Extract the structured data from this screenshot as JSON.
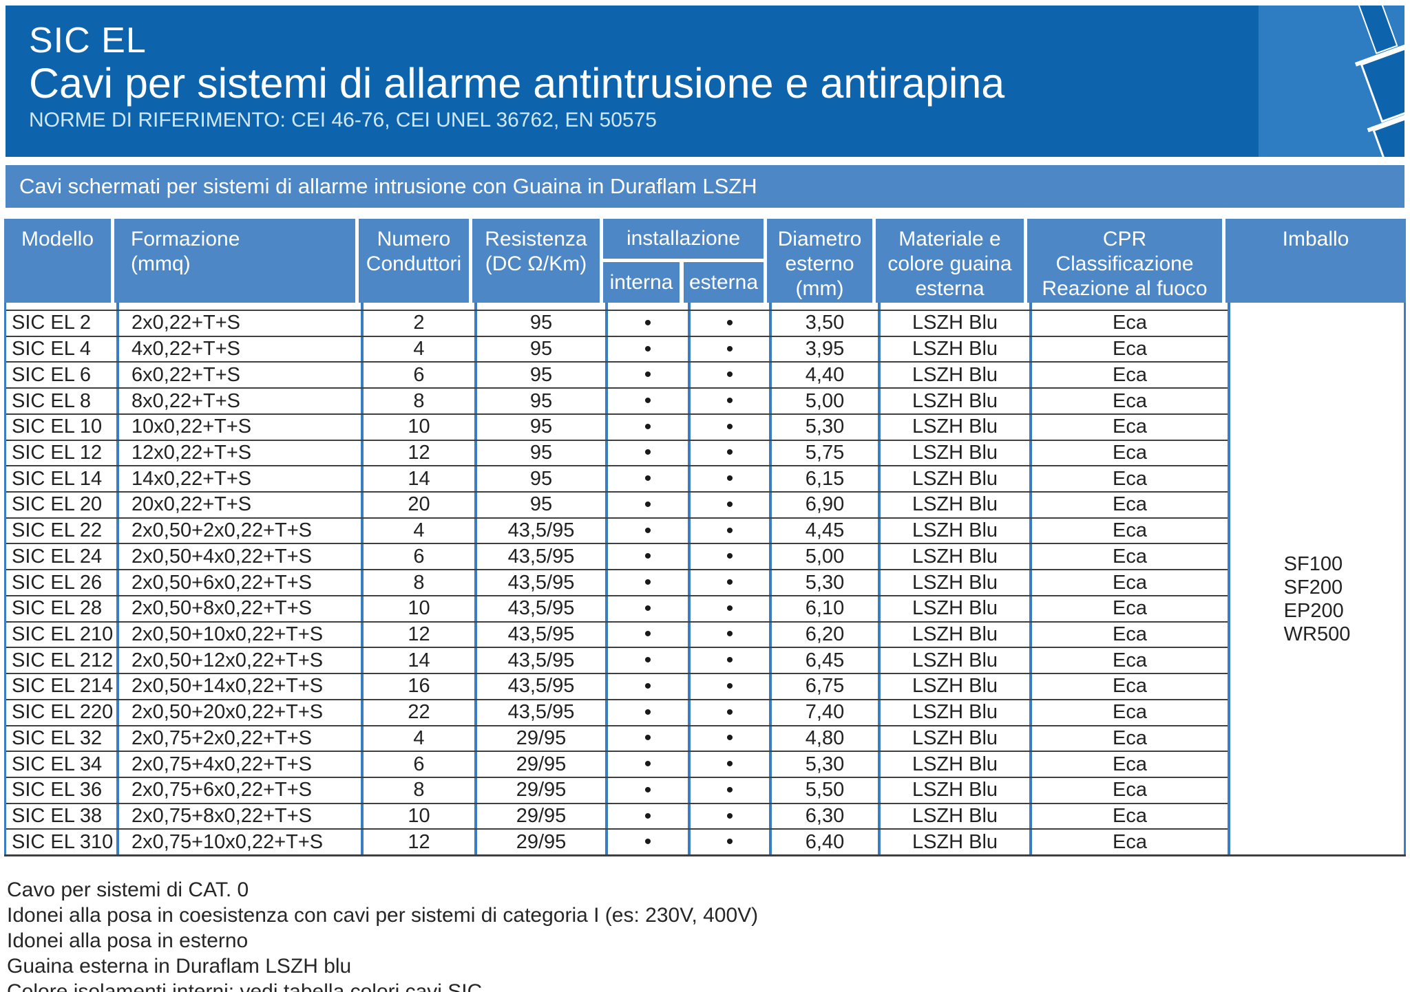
{
  "header": {
    "product": "SIC EL",
    "title": "Cavi per sistemi di allarme antintrusione e antirapina",
    "norms": "NORME DI RIFERIMENTO: CEI 46-76, CEI UNEL 36762, EN 50575"
  },
  "section": {
    "banner": "Cavi schermati per sistemi di allarme intrusione con Guaina in Duraflam LSZH"
  },
  "table": {
    "headers": {
      "modello": "Modello",
      "formazione": "Formazione\n(mmq)",
      "numero": "Numero\nConduttori",
      "resistenza": "Resistenza\n(DC Ω/Km)",
      "installazione": "installazione",
      "interna": "interna",
      "esterna": "esterna",
      "diametro": "Diametro\nesterno\n(mm)",
      "materiale": "Materiale e\ncolore guaina\nesterna",
      "cpr": "CPR\nClassificazione\nReazione al fuoco",
      "imballo": "Imballo"
    },
    "dot": "•",
    "rows": [
      {
        "modello": "SIC EL 2",
        "formazione": "2x0,22+T+S",
        "conduttori": "2",
        "resistenza": "95",
        "interna": true,
        "esterna": true,
        "diametro": "3,50",
        "guaina": "LSZH Blu",
        "cpr": "Eca"
      },
      {
        "modello": "SIC EL 4",
        "formazione": "4x0,22+T+S",
        "conduttori": "4",
        "resistenza": "95",
        "interna": true,
        "esterna": true,
        "diametro": "3,95",
        "guaina": "LSZH Blu",
        "cpr": "Eca"
      },
      {
        "modello": "SIC EL 6",
        "formazione": "6x0,22+T+S",
        "conduttori": "6",
        "resistenza": "95",
        "interna": true,
        "esterna": true,
        "diametro": "4,40",
        "guaina": "LSZH Blu",
        "cpr": "Eca"
      },
      {
        "modello": "SIC EL 8",
        "formazione": "8x0,22+T+S",
        "conduttori": "8",
        "resistenza": "95",
        "interna": true,
        "esterna": true,
        "diametro": "5,00",
        "guaina": "LSZH Blu",
        "cpr": "Eca"
      },
      {
        "modello": "SIC EL 10",
        "formazione": "10x0,22+T+S",
        "conduttori": "10",
        "resistenza": "95",
        "interna": true,
        "esterna": true,
        "diametro": "5,30",
        "guaina": "LSZH Blu",
        "cpr": "Eca"
      },
      {
        "modello": "SIC EL 12",
        "formazione": "12x0,22+T+S",
        "conduttori": "12",
        "resistenza": "95",
        "interna": true,
        "esterna": true,
        "diametro": "5,75",
        "guaina": "LSZH Blu",
        "cpr": "Eca"
      },
      {
        "modello": "SIC EL 14",
        "formazione": "14x0,22+T+S",
        "conduttori": "14",
        "resistenza": "95",
        "interna": true,
        "esterna": true,
        "diametro": "6,15",
        "guaina": "LSZH Blu",
        "cpr": "Eca"
      },
      {
        "modello": "SIC EL 20",
        "formazione": "20x0,22+T+S",
        "conduttori": "20",
        "resistenza": "95",
        "interna": true,
        "esterna": true,
        "diametro": "6,90",
        "guaina": "LSZH Blu",
        "cpr": "Eca"
      },
      {
        "modello": "SIC EL 22",
        "formazione": "2x0,50+2x0,22+T+S",
        "conduttori": "4",
        "resistenza": "43,5/95",
        "interna": true,
        "esterna": true,
        "diametro": "4,45",
        "guaina": "LSZH Blu",
        "cpr": "Eca"
      },
      {
        "modello": "SIC EL 24",
        "formazione": "2x0,50+4x0,22+T+S",
        "conduttori": "6",
        "resistenza": "43,5/95",
        "interna": true,
        "esterna": true,
        "diametro": "5,00",
        "guaina": "LSZH Blu",
        "cpr": "Eca"
      },
      {
        "modello": "SIC EL 26",
        "formazione": "2x0,50+6x0,22+T+S",
        "conduttori": "8",
        "resistenza": "43,5/95",
        "interna": true,
        "esterna": true,
        "diametro": "5,30",
        "guaina": "LSZH Blu",
        "cpr": "Eca"
      },
      {
        "modello": "SIC EL 28",
        "formazione": "2x0,50+8x0,22+T+S",
        "conduttori": "10",
        "resistenza": "43,5/95",
        "interna": true,
        "esterna": true,
        "diametro": "6,10",
        "guaina": "LSZH Blu",
        "cpr": "Eca"
      },
      {
        "modello": "SIC EL 210",
        "formazione": "2x0,50+10x0,22+T+S",
        "conduttori": "12",
        "resistenza": "43,5/95",
        "interna": true,
        "esterna": true,
        "diametro": "6,20",
        "guaina": "LSZH Blu",
        "cpr": "Eca"
      },
      {
        "modello": "SIC EL 212",
        "formazione": "2x0,50+12x0,22+T+S",
        "conduttori": "14",
        "resistenza": "43,5/95",
        "interna": true,
        "esterna": true,
        "diametro": "6,45",
        "guaina": "LSZH Blu",
        "cpr": "Eca"
      },
      {
        "modello": "SIC EL 214",
        "formazione": "2x0,50+14x0,22+T+S",
        "conduttori": "16",
        "resistenza": "43,5/95",
        "interna": true,
        "esterna": true,
        "diametro": "6,75",
        "guaina": "LSZH Blu",
        "cpr": "Eca"
      },
      {
        "modello": "SIC EL 220",
        "formazione": "2x0,50+20x0,22+T+S",
        "conduttori": "22",
        "resistenza": "43,5/95",
        "interna": true,
        "esterna": true,
        "diametro": "7,40",
        "guaina": "LSZH Blu",
        "cpr": "Eca"
      },
      {
        "modello": "SIC EL 32",
        "formazione": "2x0,75+2x0,22+T+S",
        "conduttori": "4",
        "resistenza": "29/95",
        "interna": true,
        "esterna": true,
        "diametro": "4,80",
        "guaina": "LSZH Blu",
        "cpr": "Eca"
      },
      {
        "modello": "SIC EL 34",
        "formazione": "2x0,75+4x0,22+T+S",
        "conduttori": "6",
        "resistenza": "29/95",
        "interna": true,
        "esterna": true,
        "diametro": "5,30",
        "guaina": "LSZH Blu",
        "cpr": "Eca"
      },
      {
        "modello": "SIC EL 36",
        "formazione": "2x0,75+6x0,22+T+S",
        "conduttori": "8",
        "resistenza": "29/95",
        "interna": true,
        "esterna": true,
        "diametro": "5,50",
        "guaina": "LSZH Blu",
        "cpr": "Eca"
      },
      {
        "modello": "SIC EL 38",
        "formazione": "2x0,75+8x0,22+T+S",
        "conduttori": "10",
        "resistenza": "29/95",
        "interna": true,
        "esterna": true,
        "diametro": "6,30",
        "guaina": "LSZH Blu",
        "cpr": "Eca"
      },
      {
        "modello": "SIC EL 310",
        "formazione": "2x0,75+10x0,22+T+S",
        "conduttori": "12",
        "resistenza": "29/95",
        "interna": true,
        "esterna": true,
        "diametro": "6,40",
        "guaina": "LSZH Blu",
        "cpr": "Eca"
      }
    ],
    "imballo_lines": [
      "SF100",
      "SF200",
      "EP200",
      "WR500"
    ]
  },
  "notes": [
    "Cavo per sistemi di CAT. 0",
    "Idonei alla posa in coesistenza con cavi per sistemi di categoria I (es: 230V, 400V)",
    "Idonei alla posa in esterno",
    "Guaina esterna in Duraflam LSZH blu",
    "Colore isolamenti interni: vedi tabella colori cavi SIC"
  ],
  "colors": {
    "banner_blue": "#0e64ac",
    "header_blue": "#4d87c6",
    "corner_blue": "#2e7cc1",
    "grid_blue": "#3a7dc2",
    "grid_dark": "#3f3f3f"
  }
}
